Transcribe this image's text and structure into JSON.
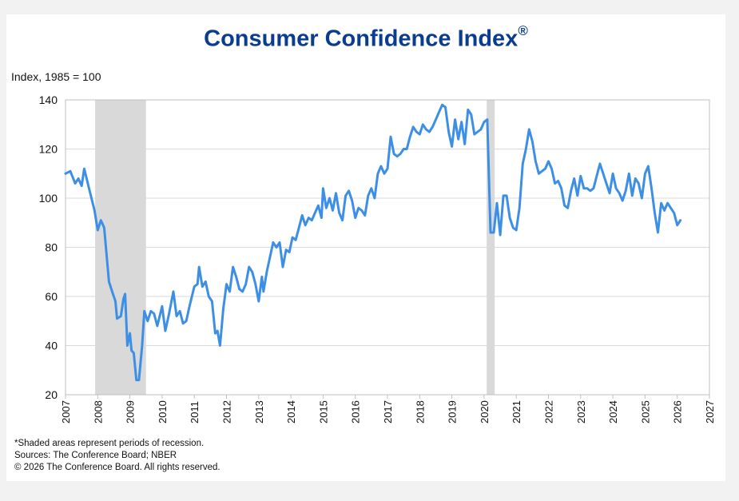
{
  "title": "Consumer Confidence Index",
  "title_mark": "®",
  "colors": {
    "line": "#3d8fe6",
    "title": "#0a3d8f",
    "recession": "#d9d9d9",
    "grid": "#d9d9d9"
  },
  "notes": {
    "shaded": "*Shaded areas represent periods of recession.",
    "sources": "Sources:  The Conference Board;  NBER",
    "copyright": "© 2026 The Conference Board. All rights reserved."
  },
  "chart_data": {
    "type": "line",
    "title": "Consumer Confidence Index®",
    "ylabel": "Index, 1985 = 100",
    "xlabel": "",
    "ylim": [
      20,
      140
    ],
    "xlim": [
      2007,
      2027
    ],
    "yticks": [
      20,
      40,
      60,
      80,
      100,
      120,
      140
    ],
    "xticks": [
      2007,
      2008,
      2009,
      2010,
      2011,
      2012,
      2013,
      2014,
      2015,
      2016,
      2017,
      2018,
      2019,
      2020,
      2021,
      2022,
      2023,
      2024,
      2025,
      2026,
      2027
    ],
    "grid": "horizontal",
    "recessions": [
      {
        "start": 2007.92,
        "end": 2009.5
      },
      {
        "start": 2020.08,
        "end": 2020.33
      }
    ],
    "series": [
      {
        "name": "Consumer Confidence Index",
        "x": [
          2007.0,
          2007.15,
          2007.3,
          2007.4,
          2007.5,
          2007.58,
          2007.75,
          2007.9,
          2008.0,
          2008.1,
          2008.2,
          2008.35,
          2008.45,
          2008.55,
          2008.6,
          2008.72,
          2008.8,
          2008.85,
          2008.92,
          2009.0,
          2009.05,
          2009.12,
          2009.2,
          2009.28,
          2009.38,
          2009.45,
          2009.55,
          2009.65,
          2009.75,
          2009.85,
          2010.0,
          2010.1,
          2010.2,
          2010.35,
          2010.45,
          2010.55,
          2010.65,
          2010.75,
          2010.85,
          2011.0,
          2011.1,
          2011.15,
          2011.25,
          2011.35,
          2011.45,
          2011.55,
          2011.65,
          2011.72,
          2011.8,
          2011.9,
          2012.0,
          2012.1,
          2012.2,
          2012.3,
          2012.4,
          2012.5,
          2012.6,
          2012.7,
          2012.8,
          2012.9,
          2013.0,
          2013.1,
          2013.15,
          2013.25,
          2013.35,
          2013.45,
          2013.55,
          2013.65,
          2013.75,
          2013.85,
          2013.95,
          2014.05,
          2014.15,
          2014.25,
          2014.35,
          2014.45,
          2014.55,
          2014.65,
          2014.75,
          2014.85,
          2014.95,
          2015.0,
          2015.1,
          2015.2,
          2015.3,
          2015.4,
          2015.5,
          2015.6,
          2015.7,
          2015.8,
          2015.9,
          2016.0,
          2016.1,
          2016.2,
          2016.3,
          2016.4,
          2016.5,
          2016.6,
          2016.7,
          2016.8,
          2016.9,
          2017.0,
          2017.1,
          2017.2,
          2017.3,
          2017.4,
          2017.5,
          2017.6,
          2017.7,
          2017.8,
          2017.9,
          2018.0,
          2018.1,
          2018.2,
          2018.3,
          2018.4,
          2018.5,
          2018.6,
          2018.7,
          2018.8,
          2018.9,
          2019.0,
          2019.1,
          2019.2,
          2019.3,
          2019.4,
          2019.5,
          2019.6,
          2019.7,
          2019.8,
          2019.9,
          2020.0,
          2020.1,
          2020.2,
          2020.3,
          2020.4,
          2020.5,
          2020.6,
          2020.7,
          2020.8,
          2020.9,
          2021.0,
          2021.1,
          2021.2,
          2021.3,
          2021.4,
          2021.5,
          2021.6,
          2021.7,
          2021.8,
          2021.9,
          2022.0,
          2022.1,
          2022.2,
          2022.3,
          2022.4,
          2022.5,
          2022.6,
          2022.7,
          2022.8,
          2022.9,
          2023.0,
          2023.1,
          2023.2,
          2023.3,
          2023.4,
          2023.5,
          2023.6,
          2023.7,
          2023.8,
          2023.9,
          2024.0,
          2024.1,
          2024.2,
          2024.3,
          2024.4,
          2024.5,
          2024.6,
          2024.7,
          2024.8,
          2024.9,
          2025.0,
          2025.1,
          2025.2,
          2025.3,
          2025.4,
          2025.5,
          2025.6,
          2025.7,
          2025.8,
          2025.9,
          2026.0,
          2026.1
        ],
        "values": [
          110,
          111,
          106,
          108,
          105,
          112,
          103,
          95,
          87,
          91,
          88,
          66,
          62,
          58,
          51,
          52,
          59,
          61,
          40,
          45,
          38,
          37,
          26,
          26,
          40,
          54,
          50,
          54,
          53,
          48,
          56,
          46,
          52,
          62,
          52,
          54,
          49,
          50,
          56,
          64,
          65,
          72,
          64,
          66,
          60,
          58,
          45,
          46,
          40,
          55,
          65,
          62,
          72,
          68,
          63,
          62,
          65,
          72,
          70,
          65,
          58,
          68,
          62,
          70,
          76,
          82,
          80,
          82,
          72,
          79,
          78,
          84,
          83,
          88,
          93,
          89,
          92,
          91,
          94,
          97,
          92,
          104,
          96,
          100,
          95,
          102,
          94,
          91,
          101,
          103,
          99,
          92,
          96,
          95,
          93,
          101,
          104,
          100,
          110,
          113,
          110,
          112,
          125,
          118,
          117,
          118,
          120,
          120,
          125,
          129,
          127,
          126,
          130,
          128,
          127,
          129,
          132,
          135,
          138,
          137,
          127,
          121,
          132,
          124,
          131,
          122,
          136,
          134,
          126,
          127,
          128,
          131,
          132,
          86,
          86,
          98,
          85,
          101,
          101,
          92,
          88,
          87,
          96,
          114,
          120,
          128,
          123,
          115,
          110,
          111,
          112,
          115,
          112,
          106,
          107,
          104,
          97,
          96,
          103,
          108,
          101,
          109,
          104,
          104,
          103,
          104,
          109,
          114,
          110,
          106,
          102,
          110,
          104,
          102,
          99,
          103,
          110,
          101,
          108,
          106,
          100,
          110,
          113,
          104,
          94,
          86,
          98,
          95,
          98,
          96,
          94,
          89,
          91
        ]
      }
    ]
  }
}
